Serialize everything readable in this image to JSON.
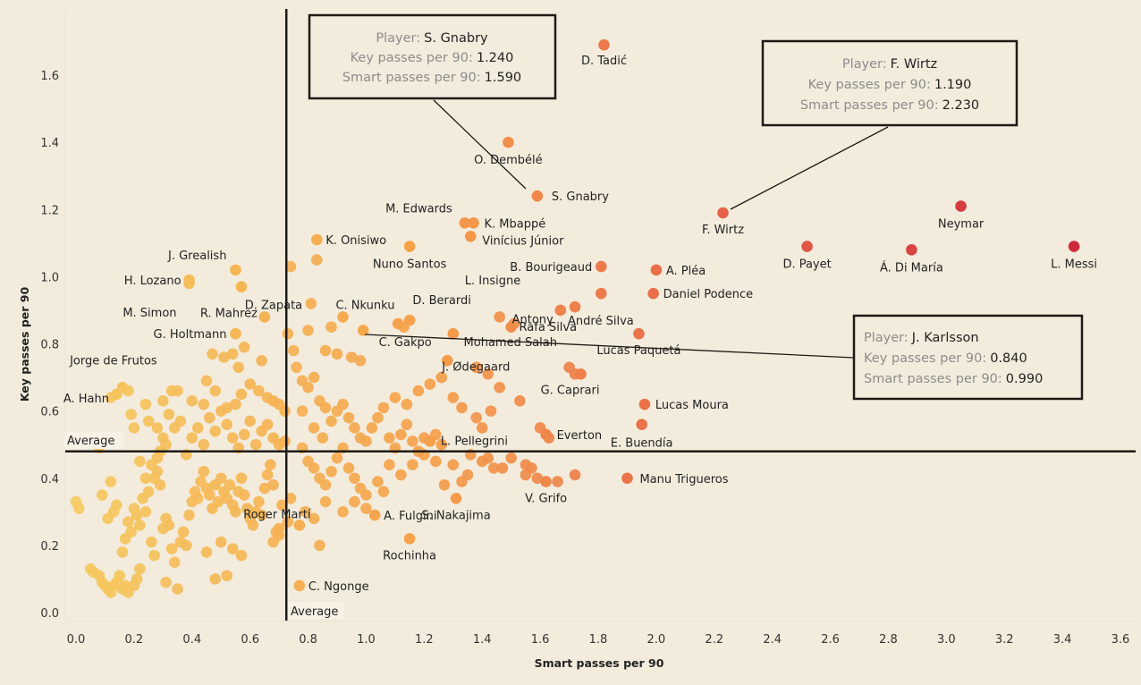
{
  "chart_data": {
    "type": "scatter",
    "title": "",
    "xlabel": "Smart passes per 90",
    "ylabel": "Key passes per 90",
    "xlim": [
      -0.05,
      3.65
    ],
    "ylim": [
      -0.03,
      1.78
    ],
    "xticks": [
      "0.0",
      "0.2",
      "0.4",
      "0.6",
      "0.8",
      "1.0",
      "1.2",
      "1.4",
      "1.6",
      "1.8",
      "2.0",
      "2.2",
      "2.4",
      "2.6",
      "2.8",
      "3.0",
      "3.2",
      "3.4",
      "3.6"
    ],
    "xtick_values": [
      0,
      0.2,
      0.4,
      0.6,
      0.8,
      1.0,
      1.2,
      1.4,
      1.6,
      1.8,
      2.0,
      2.2,
      2.4,
      2.6,
      2.8,
      3.0,
      3.2,
      3.4,
      3.6
    ],
    "yticks": [
      "0.0",
      "0.2",
      "0.4",
      "0.6",
      "0.8",
      "1.0",
      "1.2",
      "1.4",
      "1.6"
    ],
    "ytick_values": [
      0,
      0.2,
      0.4,
      0.6,
      0.8,
      1.0,
      1.2,
      1.4,
      1.6
    ],
    "grid": false,
    "color_scale": {
      "low": "#f5c95f",
      "mid": "#f5a04a",
      "high": "#e8664a",
      "max": "#cc2a3c",
      "domain": [
        0,
        3.45
      ]
    },
    "reference_lines": {
      "x_average": {
        "value": 0.725,
        "label": "Average"
      },
      "y_average": {
        "value": 0.48,
        "label": "Average"
      }
    },
    "labeled_points": [
      {
        "name": "D. Tadić",
        "x": 1.82,
        "y": 1.69
      },
      {
        "name": "O. Dembélé",
        "x": 1.49,
        "y": 1.4
      },
      {
        "name": "S. Gnabry",
        "x": 1.59,
        "y": 1.24
      },
      {
        "name": "M. Edwards",
        "x": 1.34,
        "y": 1.16
      },
      {
        "name": "K. Mbappé",
        "x": 1.37,
        "y": 1.16
      },
      {
        "name": "Vinícius Júnior",
        "x": 1.36,
        "y": 1.12
      },
      {
        "name": "K. Onisiwo",
        "x": 0.83,
        "y": 1.11
      },
      {
        "name": "Nuno Santos",
        "x": 1.15,
        "y": 1.09
      },
      {
        "name": "F. Wirtz",
        "x": 2.23,
        "y": 1.19
      },
      {
        "name": "Neymar",
        "x": 3.05,
        "y": 1.21
      },
      {
        "name": "D. Payet",
        "x": 2.52,
        "y": 1.09
      },
      {
        "name": "Á. Di María",
        "x": 2.88,
        "y": 1.08
      },
      {
        "name": "L. Messi",
        "x": 3.44,
        "y": 1.09
      },
      {
        "name": "B. Bourigeaud",
        "x": 1.81,
        "y": 1.03
      },
      {
        "name": "A. Pléa",
        "x": 2.0,
        "y": 1.02
      },
      {
        "name": "L. Insigne",
        "x": 1.81,
        "y": 0.95
      },
      {
        "name": "Daniel Podence",
        "x": 1.99,
        "y": 0.95
      },
      {
        "name": "J. Grealish",
        "x": 0.55,
        "y": 1.02
      },
      {
        "name": "H. Lozano",
        "x": 0.39,
        "y": 0.99
      },
      {
        "name": "M. Simon",
        "x": 0.39,
        "y": 0.98
      },
      {
        "name": "D. Zapata",
        "x": 0.57,
        "y": 0.97
      },
      {
        "name": "R. Mahrez",
        "x": 0.65,
        "y": 0.88
      },
      {
        "name": "C. Nkunku",
        "x": 0.92,
        "y": 0.88
      },
      {
        "name": "D. Berardi",
        "x": 1.15,
        "y": 0.87
      },
      {
        "name": "Antony",
        "x": 1.5,
        "y": 0.85
      },
      {
        "name": "André Silva",
        "x": 1.72,
        "y": 0.91
      },
      {
        "name": "Rafa Silva",
        "x": 1.67,
        "y": 0.9
      },
      {
        "name": "G. Holtmann",
        "x": 0.55,
        "y": 0.83
      },
      {
        "name": "J. Karlsson",
        "x": 0.99,
        "y": 0.84
      },
      {
        "name": "Lucas Paquetá",
        "x": 1.94,
        "y": 0.83
      },
      {
        "name": "C. Gakpo",
        "x": 1.11,
        "y": 0.86
      },
      {
        "name": "Mohamed Salah",
        "x": 1.3,
        "y": 0.83
      },
      {
        "name": "J. Ødegaard",
        "x": 1.28,
        "y": 0.75
      },
      {
        "name": "G. Caprari",
        "x": 1.74,
        "y": 0.71
      },
      {
        "name": "Jorge de Frutos",
        "x": 0.16,
        "y": 0.67
      },
      {
        "name": "A. Hahn",
        "x": 0.14,
        "y": 0.65
      },
      {
        "name": "Lucas Moura",
        "x": 1.96,
        "y": 0.62
      },
      {
        "name": "E. Buendía",
        "x": 1.95,
        "y": 0.56
      },
      {
        "name": "Everton",
        "x": 1.62,
        "y": 0.53
      },
      {
        "name": "L. Pellegrini",
        "x": 1.22,
        "y": 0.51
      },
      {
        "name": "Manu Trigueros",
        "x": 1.9,
        "y": 0.4
      },
      {
        "name": "V. Grifo",
        "x": 1.62,
        "y": 0.39
      },
      {
        "name": "S. Nakajima",
        "x": 1.31,
        "y": 0.34
      },
      {
        "name": "A. Fulgini",
        "x": 1.03,
        "y": 0.29
      },
      {
        "name": "Rochinha",
        "x": 1.15,
        "y": 0.22
      },
      {
        "name": "Roger Martí",
        "x": 0.77,
        "y": 0.26
      },
      {
        "name": "C. Ngonge",
        "x": 0.77,
        "y": 0.08
      }
    ],
    "unlabeled_points": [
      [
        0.0,
        0.33
      ],
      [
        0.01,
        0.31
      ],
      [
        0.05,
        0.13
      ],
      [
        0.06,
        0.12
      ],
      [
        0.08,
        0.11
      ],
      [
        0.09,
        0.09
      ],
      [
        0.1,
        0.08
      ],
      [
        0.11,
        0.07
      ],
      [
        0.12,
        0.06
      ],
      [
        0.13,
        0.08
      ],
      [
        0.14,
        0.09
      ],
      [
        0.15,
        0.11
      ],
      [
        0.16,
        0.07
      ],
      [
        0.17,
        0.08
      ],
      [
        0.18,
        0.06
      ],
      [
        0.2,
        0.08
      ],
      [
        0.21,
        0.1
      ],
      [
        0.22,
        0.13
      ],
      [
        0.09,
        0.35
      ],
      [
        0.08,
        0.49
      ],
      [
        0.12,
        0.39
      ],
      [
        0.11,
        0.28
      ],
      [
        0.13,
        0.3
      ],
      [
        0.14,
        0.32
      ],
      [
        0.16,
        0.18
      ],
      [
        0.17,
        0.22
      ],
      [
        0.18,
        0.27
      ],
      [
        0.19,
        0.24
      ],
      [
        0.2,
        0.31
      ],
      [
        0.21,
        0.29
      ],
      [
        0.22,
        0.26
      ],
      [
        0.23,
        0.34
      ],
      [
        0.24,
        0.3
      ],
      [
        0.25,
        0.36
      ],
      [
        0.26,
        0.44
      ],
      [
        0.27,
        0.4
      ],
      [
        0.28,
        0.42
      ],
      [
        0.29,
        0.38
      ],
      [
        0.3,
        0.25
      ],
      [
        0.31,
        0.28
      ],
      [
        0.32,
        0.26
      ],
      [
        0.33,
        0.19
      ],
      [
        0.34,
        0.15
      ],
      [
        0.35,
        0.07
      ],
      [
        0.36,
        0.21
      ],
      [
        0.37,
        0.24
      ],
      [
        0.38,
        0.2
      ],
      [
        0.39,
        0.29
      ],
      [
        0.4,
        0.33
      ],
      [
        0.41,
        0.36
      ],
      [
        0.42,
        0.34
      ],
      [
        0.43,
        0.39
      ],
      [
        0.44,
        0.42
      ],
      [
        0.45,
        0.37
      ],
      [
        0.46,
        0.35
      ],
      [
        0.47,
        0.31
      ],
      [
        0.48,
        0.38
      ],
      [
        0.49,
        0.33
      ],
      [
        0.5,
        0.4
      ],
      [
        0.51,
        0.36
      ],
      [
        0.52,
        0.34
      ],
      [
        0.53,
        0.38
      ],
      [
        0.54,
        0.32
      ],
      [
        0.55,
        0.3
      ],
      [
        0.56,
        0.36
      ],
      [
        0.57,
        0.4
      ],
      [
        0.58,
        0.35
      ],
      [
        0.59,
        0.31
      ],
      [
        0.6,
        0.28
      ],
      [
        0.61,
        0.26
      ],
      [
        0.62,
        0.3
      ],
      [
        0.63,
        0.33
      ],
      [
        0.64,
        0.29
      ],
      [
        0.65,
        0.37
      ],
      [
        0.66,
        0.41
      ],
      [
        0.67,
        0.44
      ],
      [
        0.68,
        0.38
      ],
      [
        0.69,
        0.24
      ],
      [
        0.7,
        0.25
      ],
      [
        0.71,
        0.32
      ],
      [
        0.48,
        0.1
      ],
      [
        0.52,
        0.11
      ],
      [
        0.45,
        0.18
      ],
      [
        0.5,
        0.21
      ],
      [
        0.54,
        0.19
      ],
      [
        0.57,
        0.17
      ],
      [
        0.26,
        0.21
      ],
      [
        0.27,
        0.17
      ],
      [
        0.31,
        0.09
      ],
      [
        0.22,
        0.45
      ],
      [
        0.24,
        0.4
      ],
      [
        0.28,
        0.46
      ],
      [
        0.29,
        0.48
      ],
      [
        0.3,
        0.52
      ],
      [
        0.31,
        0.5
      ],
      [
        0.34,
        0.55
      ],
      [
        0.36,
        0.57
      ],
      [
        0.38,
        0.47
      ],
      [
        0.4,
        0.52
      ],
      [
        0.42,
        0.55
      ],
      [
        0.44,
        0.5
      ],
      [
        0.46,
        0.58
      ],
      [
        0.48,
        0.54
      ],
      [
        0.5,
        0.6
      ],
      [
        0.52,
        0.56
      ],
      [
        0.54,
        0.52
      ],
      [
        0.56,
        0.49
      ],
      [
        0.58,
        0.53
      ],
      [
        0.6,
        0.57
      ],
      [
        0.62,
        0.5
      ],
      [
        0.64,
        0.54
      ],
      [
        0.66,
        0.56
      ],
      [
        0.68,
        0.52
      ],
      [
        0.7,
        0.5
      ],
      [
        0.72,
        0.51
      ],
      [
        0.12,
        0.64
      ],
      [
        0.18,
        0.66
      ],
      [
        0.24,
        0.62
      ],
      [
        0.3,
        0.63
      ],
      [
        0.33,
        0.66
      ],
      [
        0.35,
        0.66
      ],
      [
        0.4,
        0.63
      ],
      [
        0.44,
        0.62
      ],
      [
        0.45,
        0.69
      ],
      [
        0.48,
        0.66
      ],
      [
        0.52,
        0.61
      ],
      [
        0.55,
        0.62
      ],
      [
        0.57,
        0.65
      ],
      [
        0.6,
        0.68
      ],
      [
        0.63,
        0.66
      ],
      [
        0.66,
        0.64
      ],
      [
        0.68,
        0.63
      ],
      [
        0.7,
        0.62
      ],
      [
        0.72,
        0.6
      ],
      [
        0.47,
        0.77
      ],
      [
        0.51,
        0.76
      ],
      [
        0.54,
        0.77
      ],
      [
        0.56,
        0.73
      ],
      [
        0.58,
        0.79
      ],
      [
        0.64,
        0.75
      ],
      [
        0.73,
        0.83
      ],
      [
        0.2,
        0.55
      ],
      [
        0.19,
        0.59
      ],
      [
        0.25,
        0.57
      ],
      [
        0.28,
        0.55
      ],
      [
        0.32,
        0.59
      ],
      [
        0.75,
        0.78
      ],
      [
        0.76,
        0.73
      ],
      [
        0.78,
        0.69
      ],
      [
        0.8,
        0.67
      ],
      [
        0.82,
        0.7
      ],
      [
        0.84,
        0.63
      ],
      [
        0.86,
        0.61
      ],
      [
        0.88,
        0.57
      ],
      [
        0.9,
        0.6
      ],
      [
        0.92,
        0.62
      ],
      [
        0.94,
        0.58
      ],
      [
        0.96,
        0.55
      ],
      [
        0.98,
        0.52
      ],
      [
        1.0,
        0.51
      ],
      [
        1.02,
        0.55
      ],
      [
        1.04,
        0.58
      ],
      [
        1.06,
        0.61
      ],
      [
        1.08,
        0.52
      ],
      [
        1.1,
        0.49
      ],
      [
        1.12,
        0.53
      ],
      [
        1.14,
        0.56
      ],
      [
        1.16,
        0.51
      ],
      [
        1.18,
        0.48
      ],
      [
        1.2,
        0.52
      ],
      [
        1.24,
        0.53
      ],
      [
        1.26,
        0.5
      ],
      [
        0.78,
        0.49
      ],
      [
        0.8,
        0.45
      ],
      [
        0.82,
        0.43
      ],
      [
        0.84,
        0.4
      ],
      [
        0.86,
        0.38
      ],
      [
        0.88,
        0.42
      ],
      [
        0.9,
        0.46
      ],
      [
        0.92,
        0.49
      ],
      [
        0.94,
        0.43
      ],
      [
        0.96,
        0.4
      ],
      [
        0.98,
        0.37
      ],
      [
        1.0,
        0.35
      ],
      [
        1.04,
        0.39
      ],
      [
        1.08,
        0.44
      ],
      [
        1.12,
        0.41
      ],
      [
        1.16,
        0.44
      ],
      [
        1.2,
        0.47
      ],
      [
        1.24,
        0.45
      ],
      [
        1.3,
        0.44
      ],
      [
        1.36,
        0.47
      ],
      [
        1.4,
        0.45
      ],
      [
        1.44,
        0.43
      ],
      [
        1.5,
        0.46
      ],
      [
        1.55,
        0.44
      ],
      [
        1.57,
        0.43
      ],
      [
        0.8,
        0.84
      ],
      [
        0.86,
        0.78
      ],
      [
        0.9,
        0.77
      ],
      [
        0.95,
        0.76
      ],
      [
        0.98,
        0.75
      ],
      [
        0.78,
        0.6
      ],
      [
        0.82,
        0.55
      ],
      [
        0.85,
        0.52
      ],
      [
        1.1,
        0.64
      ],
      [
        1.14,
        0.62
      ],
      [
        1.18,
        0.66
      ],
      [
        1.22,
        0.68
      ],
      [
        1.26,
        0.7
      ],
      [
        1.3,
        0.64
      ],
      [
        1.33,
        0.61
      ],
      [
        1.38,
        0.58
      ],
      [
        1.4,
        0.55
      ],
      [
        1.43,
        0.6
      ],
      [
        1.46,
        0.67
      ],
      [
        1.53,
        0.63
      ],
      [
        0.74,
        1.03
      ],
      [
        0.83,
        1.05
      ],
      [
        0.81,
        0.92
      ],
      [
        0.88,
        0.85
      ],
      [
        1.13,
        0.85
      ],
      [
        1.46,
        0.88
      ],
      [
        1.51,
        0.86
      ],
      [
        1.7,
        0.73
      ],
      [
        1.72,
        0.71
      ],
      [
        1.6,
        0.55
      ],
      [
        1.63,
        0.52
      ],
      [
        1.38,
        0.73
      ],
      [
        1.42,
        0.71
      ],
      [
        0.92,
        0.3
      ],
      [
        0.96,
        0.33
      ],
      [
        1.0,
        0.31
      ],
      [
        1.06,
        0.36
      ],
      [
        0.84,
        0.2
      ],
      [
        1.27,
        0.38
      ],
      [
        1.33,
        0.39
      ],
      [
        1.35,
        0.41
      ],
      [
        1.42,
        0.46
      ],
      [
        1.47,
        0.43
      ],
      [
        1.55,
        0.41
      ],
      [
        1.59,
        0.4
      ],
      [
        1.66,
        0.39
      ],
      [
        1.72,
        0.41
      ],
      [
        0.68,
        0.21
      ],
      [
        0.7,
        0.23
      ],
      [
        0.79,
        0.3
      ],
      [
        0.82,
        0.28
      ],
      [
        0.86,
        0.33
      ],
      [
        0.73,
        0.27
      ],
      [
        0.74,
        0.34
      ]
    ],
    "annotations": [
      {
        "player": "S. Gnabry",
        "key_label": "Key passes per 90:",
        "key_value": "1.240",
        "smart_label": "Smart passes per 90:",
        "smart_value": "1.590",
        "player_label": "Player:"
      },
      {
        "player": "F. Wirtz",
        "key_label": "Key passes per 90:",
        "key_value": "1.190",
        "smart_label": "Smart passes per 90:",
        "smart_value": "2.230",
        "player_label": "Player:"
      },
      {
        "player": "J. Karlsson",
        "key_label": "Key passes per 90:",
        "key_value": "0.840",
        "smart_label": "Smart passes per 90:",
        "smart_value": "0.990",
        "player_label": "Player:"
      }
    ]
  }
}
